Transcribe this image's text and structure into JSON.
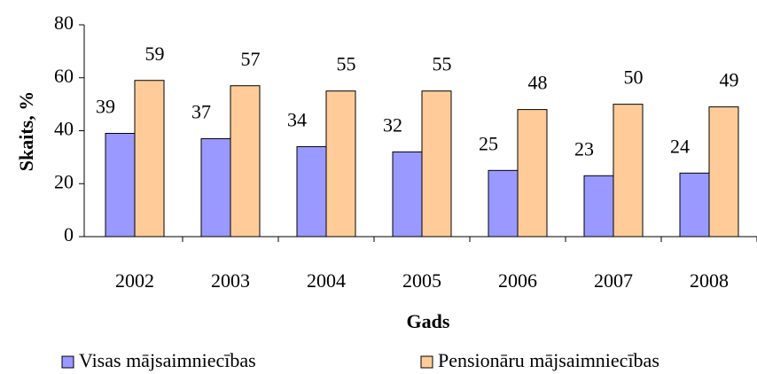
{
  "chart_data": {
    "type": "bar",
    "xlabel": "Gads",
    "ylabel": "Skaits, %",
    "categories": [
      "2002",
      "2003",
      "2004",
      "2005",
      "2006",
      "2007",
      "2008"
    ],
    "series": [
      {
        "name": "Visas mājsaimniecības",
        "color": "#9999ff",
        "values": [
          39,
          37,
          34,
          32,
          25,
          23,
          24
        ]
      },
      {
        "name": "Pensionāru mājsaimniecības",
        "color": "#ffcc99",
        "values": [
          59,
          57,
          55,
          55,
          48,
          50,
          49
        ]
      }
    ],
    "ylim": [
      0,
      80
    ],
    "yticks": [
      0,
      20,
      40,
      60,
      80
    ],
    "grid": false,
    "legend": "bottom"
  }
}
